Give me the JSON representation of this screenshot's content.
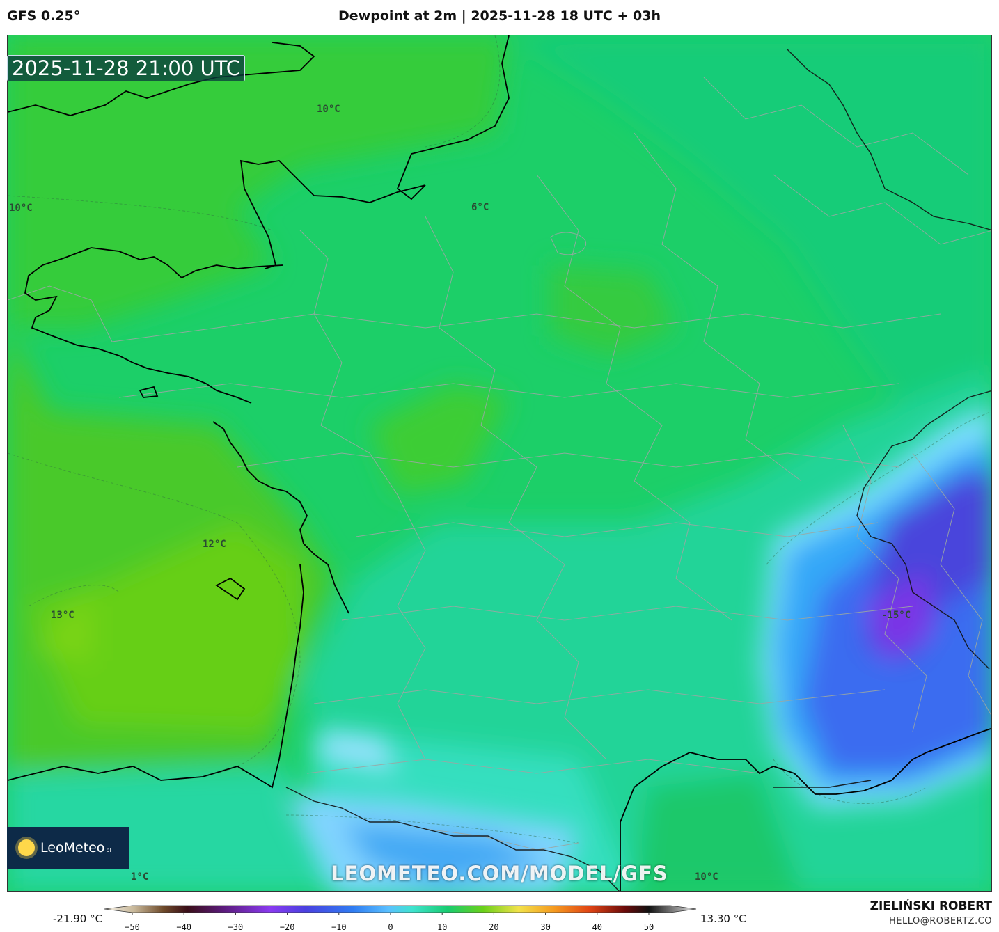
{
  "header": {
    "model": "GFS 0.25°",
    "title": "Dewpoint at 2m | 2025-11-28 18 UTC + 03h"
  },
  "map": {
    "timestamp": "2025-11-28 21:00 UTC",
    "isolabels": [
      "10°C",
      "10°C",
      "6°C",
      "12°C",
      "13°C",
      "-15°C",
      "1°C",
      "10°C"
    ],
    "logo_text": "LeoMeteo",
    "logo_suffix": "pl",
    "watermark": "LEOMETEO.COM/MODEL/GFS"
  },
  "colorbar": {
    "min_label": "-21.90 °C",
    "max_label": "13.30 °C",
    "ticks": [
      "−50",
      "−40",
      "−30",
      "−20",
      "−10",
      "0",
      "10",
      "20",
      "30",
      "40",
      "50"
    ],
    "range": [
      -55,
      55
    ]
  },
  "footer": {
    "author": "ZIELIŃSKI ROBERT",
    "email": "HELLO@ROBERTZ.CO"
  },
  "colors": {
    "green_warm": "#5fcf1e",
    "green_mid": "#2fcd3c",
    "green_teal": "#15cd74",
    "teal": "#22d8a5",
    "cyan": "#3fe3d3",
    "blue_light": "#5ab4ff",
    "blue": "#3d6bf2",
    "violet": "#6a3ce0"
  }
}
